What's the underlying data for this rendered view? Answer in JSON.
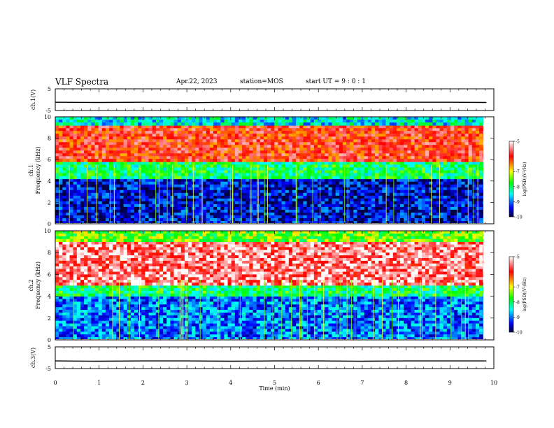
{
  "header": {
    "title": "VLF Spectra",
    "date": "Apr.22, 2023",
    "station": "station=MOS",
    "start_ut": "start  UT =  9 : 0 : 1"
  },
  "chart_data": [
    {
      "type": "line",
      "ylabel": "ch.1(V)",
      "ylim": [
        -5,
        5
      ],
      "yticks": [
        "5",
        "-5"
      ],
      "series": [
        {
          "values": [
            -1.2,
            -1.3,
            -1.2,
            -1.4,
            -1.2,
            -1.3,
            -1.2,
            -1.3,
            -1.2,
            -1.2,
            -1.3
          ]
        }
      ],
      "x": [
        0,
        1,
        2,
        3,
        4,
        5,
        6,
        7,
        8,
        9,
        9.83
      ]
    },
    {
      "type": "heatmap",
      "ylabel_line1": "ch.1",
      "ylabel_line2": "Frequency (kHz)",
      "ylim": [
        0,
        10
      ],
      "yticks": [
        "0",
        "2",
        "4",
        "6",
        "8",
        "10"
      ],
      "xlim": [
        0,
        10
      ],
      "colorbar": {
        "label": "log(PSD)(V²/Hz)",
        "range": [
          -10,
          -5
        ],
        "ticks": [
          "-5",
          "-7",
          "-8",
          "-9",
          "-10"
        ]
      },
      "bands": [
        {
          "freq_khz": [
            0,
            4.2
          ],
          "log_psd": -9.5
        },
        {
          "freq_khz": [
            4.2,
            5.8
          ],
          "log_psd": -8
        },
        {
          "freq_khz": [
            5.8,
            9.2
          ],
          "log_psd": -6
        },
        {
          "freq_khz": [
            9.2,
            10
          ],
          "log_psd": -8.5
        }
      ]
    },
    {
      "type": "heatmap",
      "ylabel_line1": "ch.2",
      "ylabel_line2": "Frequency (kHz)",
      "ylim": [
        0,
        10
      ],
      "yticks": [
        "0",
        "2",
        "4",
        "6",
        "8",
        "10"
      ],
      "xlim": [
        0,
        10
      ],
      "colorbar": {
        "label": "log(PSD)(V²/Hz)",
        "range": [
          -10,
          -5
        ],
        "ticks": [
          "-5",
          "-7",
          "-8",
          "-9",
          "-10"
        ]
      },
      "bands": [
        {
          "freq_khz": [
            0,
            4
          ],
          "log_psd": -9
        },
        {
          "freq_khz": [
            4,
            5
          ],
          "log_psd": -8
        },
        {
          "freq_khz": [
            5,
            9
          ],
          "log_psd": -5.5
        },
        {
          "freq_khz": [
            9,
            10
          ],
          "log_psd": -7.5
        }
      ]
    },
    {
      "type": "line",
      "ylabel": "ch.3(V)",
      "ylim": [
        -5,
        5
      ],
      "yticks": [
        "5",
        "-5"
      ],
      "series": [
        {
          "values": [
            -1.5,
            -1.6,
            -1.5,
            -1.5,
            -1.6,
            -1.5,
            -1.5,
            -1.6,
            -1.5,
            -1.5,
            -1.5
          ]
        }
      ],
      "x": [
        0,
        1,
        2,
        3,
        4,
        5,
        6,
        7,
        8,
        9,
        9.83
      ],
      "xlabel": "Time (min)",
      "xticks": [
        "0",
        "1",
        "2",
        "3",
        "4",
        "5",
        "6",
        "7",
        "8",
        "9",
        "10"
      ],
      "xlim": [
        0,
        10
      ]
    }
  ]
}
